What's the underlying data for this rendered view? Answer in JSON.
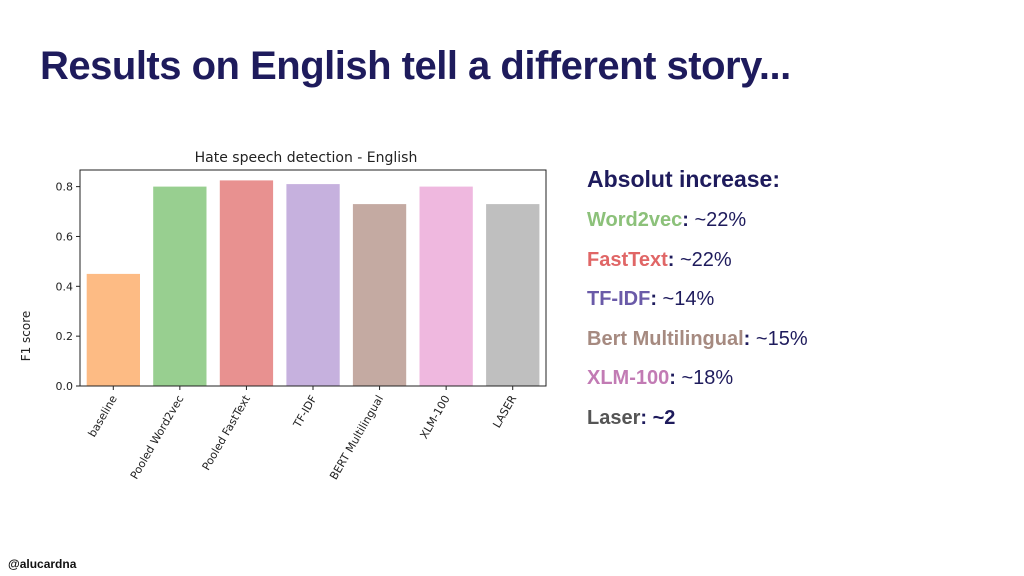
{
  "slide": {
    "title": "Results on English tell a different story...",
    "handle": "@alucardna"
  },
  "increase": {
    "heading": "Absolut increase:",
    "items": [
      {
        "name": "Word2vec",
        "value": "~22%",
        "color": "#8cc17a",
        "value_bold": false
      },
      {
        "name": "FastText",
        "value": "~22%",
        "color": "#e06666",
        "value_bold": false
      },
      {
        "name": "TF-IDF",
        "value": "~14%",
        "color": "#6a5aa8",
        "value_bold": false
      },
      {
        "name": "Bert Multilingual",
        "value": "~15%",
        "color": "#a68a80",
        "value_bold": false
      },
      {
        "name": "XLM-100",
        "value": "~18%",
        "color": "#c27bb4",
        "value_bold": false
      },
      {
        "name": "Laser",
        "value": "~2",
        "color": "#555555",
        "value_bold": true
      }
    ]
  },
  "chart_data": {
    "type": "bar",
    "title": "Hate speech detection - English",
    "xlabel": "",
    "ylabel": "F1 score",
    "ylim": [
      0,
      0.8667
    ],
    "yticks": [
      "0.0",
      "0.2",
      "0.4",
      "0.6",
      "0.8"
    ],
    "ytick_values": [
      0.0,
      0.2,
      0.4,
      0.6,
      0.8
    ],
    "categories": [
      "baseline",
      "Pooled Word2vec",
      "Pooled FastText",
      "TF-IDF",
      "BERT Multilingual",
      "XLM-100",
      "LASER"
    ],
    "values": [
      0.45,
      0.8,
      0.825,
      0.81,
      0.73,
      0.8,
      0.73
    ],
    "colors": [
      "#fdbb84",
      "#98cf90",
      "#e89190",
      "#c6b1de",
      "#c4aaa2",
      "#efb8df",
      "#bfbfbf"
    ],
    "grid": false
  }
}
